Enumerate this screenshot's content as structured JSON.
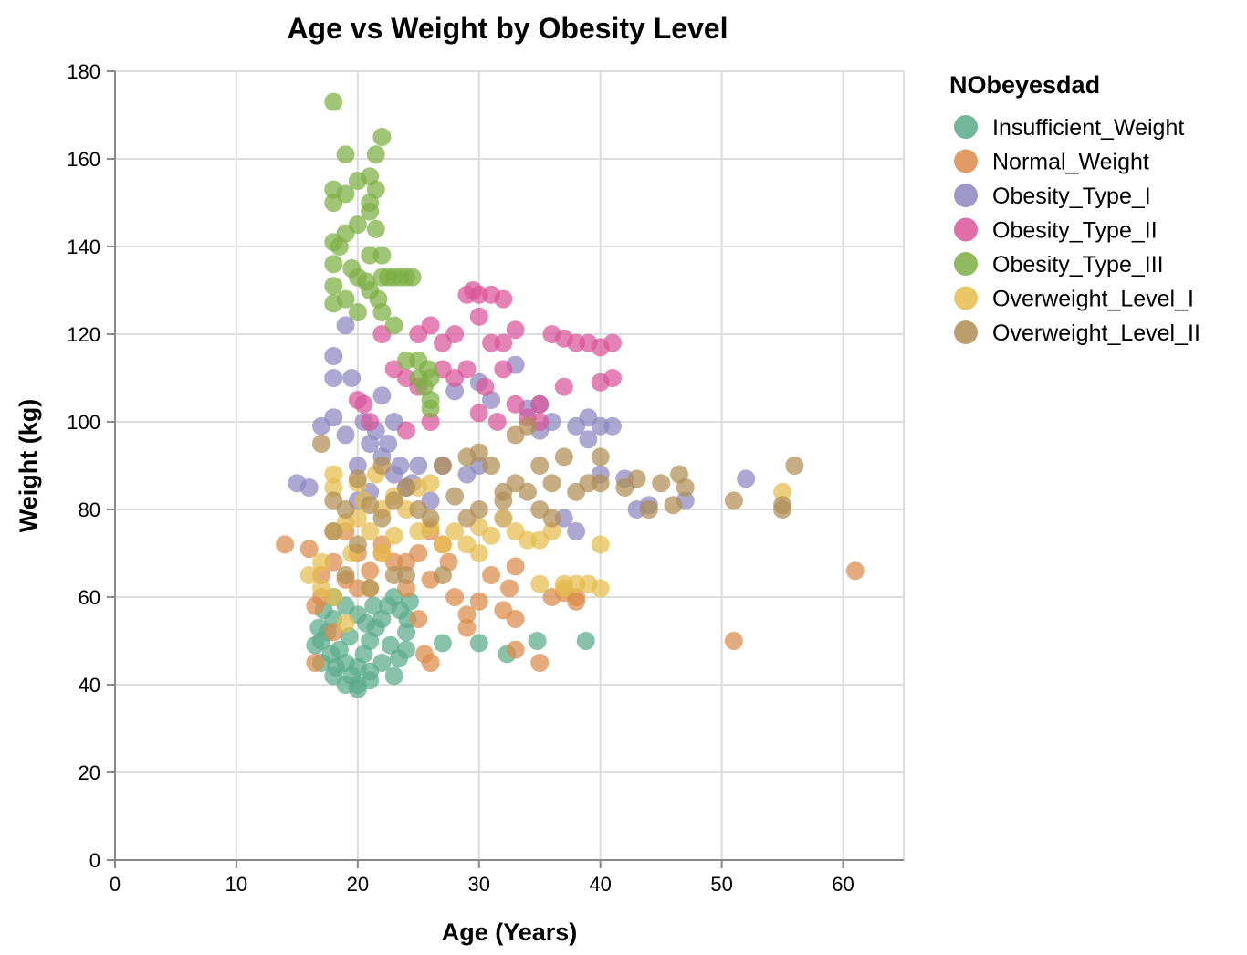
{
  "chart_data": {
    "type": "scatter",
    "title": "Age vs Weight by Obesity Level",
    "xlabel": "Age (Years)",
    "ylabel": "Weight (kg)",
    "xlim": [
      0,
      65
    ],
    "ylim": [
      0,
      180
    ],
    "x_ticks": [
      "0",
      "10",
      "20",
      "30",
      "40",
      "50",
      "60"
    ],
    "y_ticks": [
      "0",
      "20",
      "40",
      "60",
      "80",
      "100",
      "120",
      "140",
      "160",
      "180"
    ],
    "grid": true,
    "legend": {
      "title": "NObeyesdad",
      "position": "right"
    },
    "series": [
      {
        "name": "Insufficient_Weight",
        "color": "#5aaa8a",
        "points": [
          [
            17,
            50
          ],
          [
            17.5,
            52
          ],
          [
            18,
            55
          ],
          [
            18.5,
            48
          ],
          [
            19,
            45
          ],
          [
            19.5,
            42
          ],
          [
            20,
            40
          ],
          [
            20,
            44
          ],
          [
            20.5,
            47
          ],
          [
            21,
            50
          ],
          [
            21.5,
            53
          ],
          [
            22,
            55
          ],
          [
            22.5,
            58
          ],
          [
            23,
            60
          ],
          [
            23.5,
            57
          ],
          [
            24,
            52
          ],
          [
            18,
            60
          ],
          [
            19,
            58
          ],
          [
            20,
            56
          ],
          [
            21,
            43
          ],
          [
            22,
            45
          ],
          [
            23,
            42
          ],
          [
            24,
            48
          ],
          [
            17,
            45
          ],
          [
            18,
            42
          ],
          [
            19,
            40
          ],
          [
            20,
            39
          ],
          [
            21,
            41
          ],
          [
            16.5,
            49
          ],
          [
            16.8,
            53
          ],
          [
            17.2,
            57
          ],
          [
            17.8,
            47
          ],
          [
            18.2,
            44
          ],
          [
            19.3,
            51
          ],
          [
            20.7,
            54
          ],
          [
            21.3,
            58
          ],
          [
            22.7,
            49
          ],
          [
            23.4,
            46
          ],
          [
            24.1,
            55
          ],
          [
            24.3,
            59
          ],
          [
            27,
            49.5
          ],
          [
            30,
            49.5
          ],
          [
            32.3,
            47
          ],
          [
            34.8,
            50
          ],
          [
            38.8,
            50
          ]
        ]
      },
      {
        "name": "Normal_Weight",
        "color": "#dd8a4a",
        "points": [
          [
            14,
            72
          ],
          [
            16,
            71
          ],
          [
            16.5,
            58
          ],
          [
            16.5,
            45
          ],
          [
            17,
            65
          ],
          [
            17,
            60
          ],
          [
            18,
            68
          ],
          [
            19,
            75
          ],
          [
            20,
            70
          ],
          [
            21,
            66
          ],
          [
            22,
            72
          ],
          [
            23,
            68
          ],
          [
            24,
            62
          ],
          [
            25,
            55
          ],
          [
            25,
            70
          ],
          [
            25.5,
            47
          ],
          [
            26,
            75
          ],
          [
            26,
            64
          ],
          [
            26,
            45
          ],
          [
            27,
            72
          ],
          [
            27.5,
            68
          ],
          [
            28,
            60
          ],
          [
            29,
            56
          ],
          [
            29,
            53
          ],
          [
            30,
            59
          ],
          [
            31,
            65
          ],
          [
            32,
            57
          ],
          [
            32.5,
            62
          ],
          [
            33,
            55
          ],
          [
            33,
            48
          ],
          [
            33,
            67
          ],
          [
            35,
            45
          ],
          [
            36,
            60
          ],
          [
            37,
            61
          ],
          [
            38,
            59
          ],
          [
            38,
            60
          ],
          [
            51,
            50
          ],
          [
            61,
            66
          ],
          [
            24,
            68
          ],
          [
            22,
            70
          ],
          [
            20,
            62
          ],
          [
            19,
            64
          ],
          [
            18,
            52
          ]
        ]
      },
      {
        "name": "Obesity_Type_I",
        "color": "#8c86c0",
        "points": [
          [
            15,
            86
          ],
          [
            16,
            85
          ],
          [
            17,
            99
          ],
          [
            18,
            101
          ],
          [
            18,
            110
          ],
          [
            18,
            115
          ],
          [
            19,
            97
          ],
          [
            19,
            122
          ],
          [
            20,
            90
          ],
          [
            20,
            82
          ],
          [
            21,
            95
          ],
          [
            21,
            84
          ],
          [
            22,
            106
          ],
          [
            22,
            92
          ],
          [
            23,
            100
          ],
          [
            23,
            88
          ],
          [
            24,
            85
          ],
          [
            25,
            90
          ],
          [
            26,
            82
          ],
          [
            27,
            90
          ],
          [
            28,
            107
          ],
          [
            29,
            88
          ],
          [
            30,
            109
          ],
          [
            30,
            90
          ],
          [
            31,
            105
          ],
          [
            32,
            78
          ],
          [
            33,
            113
          ],
          [
            34,
            103
          ],
          [
            35,
            104
          ],
          [
            35,
            98
          ],
          [
            36,
            100
          ],
          [
            37,
            78
          ],
          [
            38,
            99
          ],
          [
            38,
            75
          ],
          [
            39,
            101
          ],
          [
            39,
            96
          ],
          [
            40,
            99
          ],
          [
            40,
            88
          ],
          [
            41,
            99
          ],
          [
            42,
            87
          ],
          [
            43,
            80
          ],
          [
            44,
            81
          ],
          [
            47,
            82
          ],
          [
            52,
            87
          ],
          [
            19.5,
            110
          ],
          [
            20.5,
            100
          ],
          [
            21.5,
            98
          ],
          [
            22.5,
            95
          ],
          [
            23.5,
            90
          ],
          [
            24.5,
            86
          ]
        ]
      },
      {
        "name": "Obesity_Type_II",
        "color": "#d9559a",
        "points": [
          [
            20,
            105
          ],
          [
            20.5,
            104
          ],
          [
            21,
            100
          ],
          [
            22,
            120
          ],
          [
            23,
            112
          ],
          [
            24,
            110
          ],
          [
            24,
            98
          ],
          [
            25,
            120
          ],
          [
            25,
            108
          ],
          [
            26,
            122
          ],
          [
            26,
            100
          ],
          [
            27,
            118
          ],
          [
            27,
            112
          ],
          [
            28,
            120
          ],
          [
            28,
            110
          ],
          [
            29,
            129
          ],
          [
            29,
            112
          ],
          [
            29.5,
            130
          ],
          [
            30,
            129
          ],
          [
            30,
            124
          ],
          [
            30,
            102
          ],
          [
            31,
            129
          ],
          [
            31,
            118
          ],
          [
            32,
            128
          ],
          [
            32,
            118
          ],
          [
            32,
            112
          ],
          [
            33,
            121
          ],
          [
            33,
            104
          ],
          [
            34,
            101
          ],
          [
            35,
            104
          ],
          [
            35,
            100
          ],
          [
            36,
            120
          ],
          [
            37,
            119
          ],
          [
            37,
            108
          ],
          [
            38,
            118
          ],
          [
            39,
            118
          ],
          [
            40,
            109
          ],
          [
            40,
            117
          ],
          [
            41,
            118
          ],
          [
            41,
            110
          ],
          [
            31.5,
            100
          ],
          [
            30.5,
            108
          ]
        ]
      },
      {
        "name": "Obesity_Type_III",
        "color": "#7cae42",
        "points": [
          [
            18,
            173
          ],
          [
            18,
            153
          ],
          [
            18,
            150
          ],
          [
            18,
            141
          ],
          [
            18,
            136
          ],
          [
            18,
            131
          ],
          [
            18,
            127
          ],
          [
            18.5,
            140
          ],
          [
            19,
            161
          ],
          [
            19,
            152
          ],
          [
            19,
            143
          ],
          [
            19,
            128
          ],
          [
            19.5,
            135
          ],
          [
            20,
            155
          ],
          [
            20,
            145
          ],
          [
            20,
            133
          ],
          [
            20,
            125
          ],
          [
            21,
            156
          ],
          [
            21,
            150
          ],
          [
            21,
            148
          ],
          [
            21,
            138
          ],
          [
            21,
            130
          ],
          [
            21.5,
            153
          ],
          [
            21.5,
            144
          ],
          [
            21.5,
            161
          ],
          [
            22,
            165
          ],
          [
            22,
            138
          ],
          [
            22,
            133
          ],
          [
            22,
            125
          ],
          [
            22.5,
            133
          ],
          [
            23,
            133
          ],
          [
            23,
            122
          ],
          [
            23.5,
            133
          ],
          [
            24,
            133
          ],
          [
            24,
            114
          ],
          [
            24.5,
            133
          ],
          [
            25,
            114
          ],
          [
            25,
            110
          ],
          [
            25.5,
            108
          ],
          [
            26,
            105
          ],
          [
            26,
            103
          ],
          [
            26,
            110
          ],
          [
            25.8,
            112
          ],
          [
            21.7,
            128
          ],
          [
            20.7,
            132
          ]
        ]
      },
      {
        "name": "Overweight_Level_I",
        "color": "#e5bc4e",
        "points": [
          [
            16,
            65
          ],
          [
            17,
            68
          ],
          [
            17,
            62
          ],
          [
            18,
            88
          ],
          [
            18,
            85
          ],
          [
            18,
            75
          ],
          [
            18,
            60
          ],
          [
            19,
            77
          ],
          [
            19,
            54
          ],
          [
            20,
            86
          ],
          [
            20,
            78
          ],
          [
            21,
            75
          ],
          [
            21,
            62
          ],
          [
            22,
            80
          ],
          [
            22,
            70
          ],
          [
            23,
            83
          ],
          [
            23,
            74
          ],
          [
            24,
            80
          ],
          [
            25,
            85
          ],
          [
            25,
            75
          ],
          [
            26,
            86
          ],
          [
            26,
            76
          ],
          [
            27,
            72
          ],
          [
            28,
            75
          ],
          [
            29,
            72
          ],
          [
            30,
            76
          ],
          [
            30,
            70
          ],
          [
            31,
            74
          ],
          [
            32,
            78
          ],
          [
            33,
            75
          ],
          [
            34,
            73
          ],
          [
            35,
            73
          ],
          [
            35,
            63
          ],
          [
            36,
            75
          ],
          [
            37,
            62
          ],
          [
            37,
            63
          ],
          [
            38,
            63
          ],
          [
            39,
            63
          ],
          [
            40,
            62
          ],
          [
            40,
            72
          ],
          [
            55,
            84
          ],
          [
            19.5,
            70
          ],
          [
            20.5,
            82
          ],
          [
            21.5,
            88
          ]
        ]
      },
      {
        "name": "Overweight_Level_II",
        "color": "#b08d55",
        "points": [
          [
            17,
            95
          ],
          [
            18,
            82
          ],
          [
            18,
            75
          ],
          [
            19,
            80
          ],
          [
            19,
            65
          ],
          [
            20,
            87
          ],
          [
            20,
            72
          ],
          [
            21,
            81
          ],
          [
            21,
            62
          ],
          [
            22,
            90
          ],
          [
            22,
            78
          ],
          [
            23,
            82
          ],
          [
            23,
            65
          ],
          [
            24,
            85
          ],
          [
            24,
            65
          ],
          [
            25,
            80
          ],
          [
            26,
            78
          ],
          [
            27,
            90
          ],
          [
            27,
            65
          ],
          [
            28,
            83
          ],
          [
            29,
            92
          ],
          [
            29,
            78
          ],
          [
            30,
            93
          ],
          [
            30,
            80
          ],
          [
            31,
            90
          ],
          [
            32,
            82
          ],
          [
            33,
            86
          ],
          [
            33,
            97
          ],
          [
            34,
            84
          ],
          [
            34,
            99
          ],
          [
            35,
            80
          ],
          [
            35,
            90
          ],
          [
            36,
            86
          ],
          [
            37,
            92
          ],
          [
            38,
            84
          ],
          [
            39,
            86
          ],
          [
            40,
            86
          ],
          [
            40,
            92
          ],
          [
            42,
            85
          ],
          [
            43,
            87
          ],
          [
            44,
            80
          ],
          [
            45,
            86
          ],
          [
            46,
            81
          ],
          [
            46.5,
            88
          ],
          [
            47,
            85
          ],
          [
            51,
            82
          ],
          [
            55,
            80
          ],
          [
            55,
            81
          ],
          [
            56,
            90
          ],
          [
            36,
            78
          ],
          [
            32,
            84
          ]
        ]
      }
    ]
  }
}
